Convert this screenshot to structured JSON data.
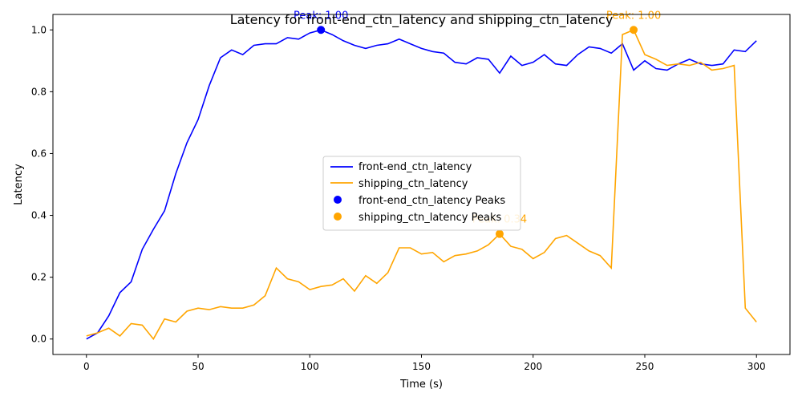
{
  "chart_data": {
    "type": "line",
    "title": "Latency for front-end_ctn_latency and shipping_ctn_latency",
    "xlabel": "Time (s)",
    "ylabel": "Latency",
    "xlim": [
      -15,
      315
    ],
    "ylim": [
      -0.05,
      1.05
    ],
    "xticks": [
      0,
      50,
      100,
      150,
      200,
      250,
      300
    ],
    "yticks": [
      0.0,
      0.2,
      0.4,
      0.6,
      0.8,
      1.0
    ],
    "xtick_labels": [
      "0",
      "50",
      "100",
      "150",
      "200",
      "250",
      "300"
    ],
    "ytick_labels": [
      "0.0",
      "0.2",
      "0.4",
      "0.6",
      "0.8",
      "1.0"
    ],
    "grid": false,
    "legend_position": "center",
    "x": [
      0,
      5,
      10,
      15,
      20,
      25,
      30,
      35,
      40,
      45,
      50,
      55,
      60,
      65,
      70,
      75,
      80,
      85,
      90,
      95,
      100,
      105,
      110,
      115,
      120,
      125,
      130,
      135,
      140,
      145,
      150,
      155,
      160,
      165,
      170,
      175,
      180,
      185,
      190,
      195,
      200,
      205,
      210,
      215,
      220,
      225,
      230,
      235,
      240,
      245,
      250,
      255,
      260,
      265,
      270,
      275,
      280,
      285,
      290,
      295,
      300
    ],
    "series": [
      {
        "name": "front-end_ctn_latency",
        "color": "#0000ff",
        "values": [
          0.0,
          0.02,
          0.075,
          0.15,
          0.185,
          0.29,
          0.355,
          0.415,
          0.535,
          0.635,
          0.71,
          0.82,
          0.91,
          0.935,
          0.92,
          0.95,
          0.955,
          0.955,
          0.975,
          0.97,
          0.99,
          1.0,
          0.985,
          0.965,
          0.95,
          0.94,
          0.95,
          0.955,
          0.97,
          0.955,
          0.94,
          0.93,
          0.925,
          0.895,
          0.89,
          0.91,
          0.905,
          0.86,
          0.915,
          0.885,
          0.895,
          0.92,
          0.89,
          0.885,
          0.92,
          0.945,
          0.94,
          0.925,
          0.955,
          0.87,
          0.9,
          0.875,
          0.87,
          0.89,
          0.905,
          0.89,
          0.885,
          0.89,
          0.935,
          0.93,
          0.965
        ],
        "peak": {
          "x": 105,
          "y": 1.0,
          "label": "Peak: 1.00"
        }
      },
      {
        "name": "shipping_ctn_latency",
        "color": "#ffa500",
        "values": [
          0.01,
          0.02,
          0.035,
          0.01,
          0.05,
          0.045,
          0.0,
          0.065,
          0.055,
          0.09,
          0.1,
          0.095,
          0.105,
          0.1,
          0.1,
          0.11,
          0.14,
          0.23,
          0.195,
          0.185,
          0.16,
          0.17,
          0.175,
          0.195,
          0.155,
          0.205,
          0.18,
          0.215,
          0.295,
          0.295,
          0.275,
          0.28,
          0.25,
          0.27,
          0.275,
          0.285,
          0.305,
          0.34,
          0.3,
          0.29,
          0.26,
          0.28,
          0.325,
          0.335,
          0.31,
          0.285,
          0.27,
          0.23,
          0.985,
          1.0,
          0.92,
          0.905,
          0.885,
          0.89,
          0.885,
          0.895,
          0.87,
          0.875,
          0.885,
          0.1,
          0.055
        ],
        "peak": {
          "x": 185,
          "y": 0.34,
          "label": "Peak: 0.34"
        },
        "peak2": {
          "x": 245,
          "y": 1.0,
          "label": "Peak: 1.00"
        }
      }
    ],
    "legend_entries": [
      "front-end_ctn_latency",
      "shipping_ctn_latency",
      "front-end_ctn_latency Peaks",
      "shipping_ctn_latency Peaks"
    ]
  }
}
